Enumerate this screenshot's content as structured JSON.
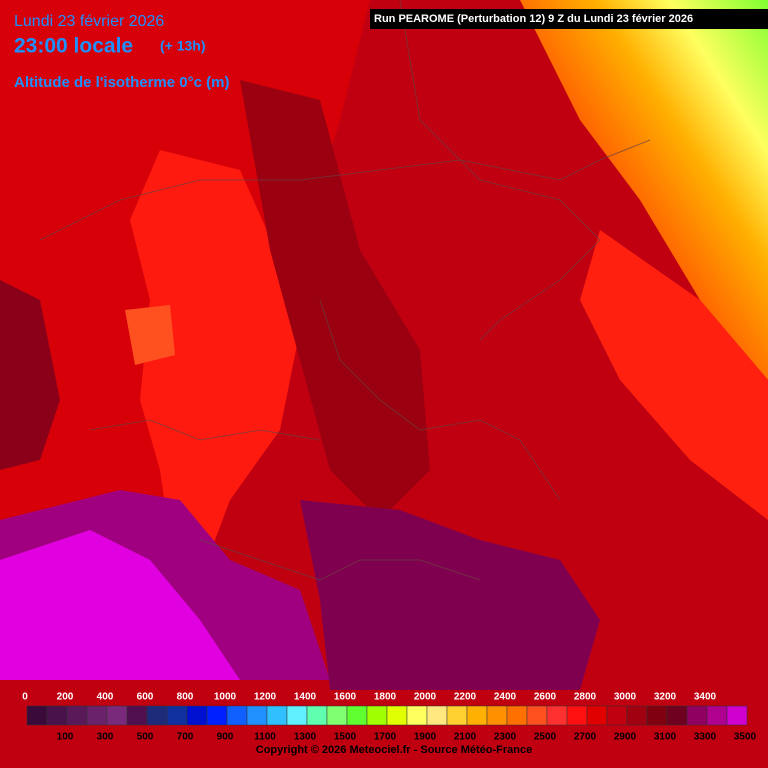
{
  "header": {
    "date": "Lundi 23 février 2026",
    "time": "23:00 locale",
    "offset": "(+ 13h)",
    "parameter": "Altitude de l'isotherme 0°c (m)",
    "run": "Run PEAROME (Perturbation 12) 9 Z du Lundi 23 février 2026"
  },
  "legend": {
    "levels": [
      0,
      100,
      200,
      300,
      400,
      500,
      600,
      700,
      800,
      900,
      1000,
      1100,
      1200,
      1300,
      1400,
      1500,
      1600,
      1700,
      1800,
      1900,
      2000,
      2100,
      2200,
      2300,
      2400,
      2500,
      2600,
      2700,
      2800,
      2900,
      3000,
      3100,
      3200,
      3300,
      3400,
      3500
    ],
    "colors": [
      "#3a0a3a",
      "#4a124a",
      "#5a1a5a",
      "#6a226a",
      "#7a2a7a",
      "#501050",
      "#1e2a7a",
      "#1030a0",
      "#0010d0",
      "#0020ff",
      "#1060ff",
      "#2090ff",
      "#30c0ff",
      "#60f0ff",
      "#60ffb0",
      "#80ff70",
      "#60ff30",
      "#a0ff00",
      "#e0ff00",
      "#ffff60",
      "#ffe880",
      "#ffd030",
      "#ffb000",
      "#ff9000",
      "#ff7000",
      "#ff5020",
      "#ff3030",
      "#ff1010",
      "#e00000",
      "#c00010",
      "#a00010",
      "#800010",
      "#700020",
      "#900060",
      "#b00090",
      "#d000d0"
    ]
  },
  "footer": {
    "copyright": "Copyright © 2026 Meteociel.fr - Source Météo-France"
  }
}
